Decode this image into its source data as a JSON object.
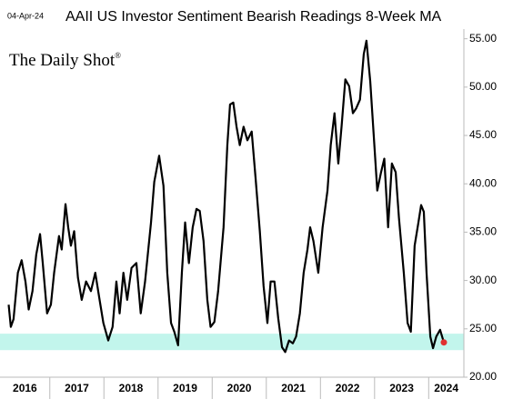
{
  "chart_data": {
    "type": "line",
    "date": "04-Apr-24",
    "title": "AAII US Investor Sentiment Bearish Readings 8-Week MA",
    "source": {
      "name": "The Daily Shot",
      "mark": "®"
    },
    "color": "#000000",
    "last_point_color": "#e03030",
    "band": [
      22.8,
      24.5
    ],
    "band_color": "#c2f5ec",
    "xlim": [
      2016.08,
      2024.65
    ],
    "xticks": [
      2016,
      2017,
      2018,
      2019,
      2020,
      2021,
      2022,
      2023,
      2024
    ],
    "ylim": [
      20,
      56
    ],
    "yticks": [
      {
        "value": 20,
        "label": "20.00"
      },
      {
        "value": 25,
        "label": "25.00"
      },
      {
        "value": 30,
        "label": "30.00"
      },
      {
        "value": 35,
        "label": "35.00"
      },
      {
        "value": 40,
        "label": "40.00"
      },
      {
        "value": 45,
        "label": "45.00"
      },
      {
        "value": 50,
        "label": "50.00"
      },
      {
        "value": 55,
        "label": "55.00"
      }
    ],
    "x": [
      2016.24,
      2016.28,
      2016.33,
      2016.41,
      2016.48,
      2016.55,
      2016.61,
      2016.68,
      2016.75,
      2016.82,
      2016.87,
      2016.95,
      2017.02,
      2017.08,
      2017.17,
      2017.22,
      2017.29,
      2017.34,
      2017.39,
      2017.45,
      2017.52,
      2017.59,
      2017.67,
      2017.76,
      2017.84,
      2017.92,
      2017.99,
      2018.08,
      2018.16,
      2018.23,
      2018.29,
      2018.36,
      2018.43,
      2018.51,
      2018.6,
      2018.68,
      2018.76,
      2018.87,
      2018.93,
      2019.02,
      2019.1,
      2019.17,
      2019.24,
      2019.3,
      2019.37,
      2019.44,
      2019.5,
      2019.57,
      2019.64,
      2019.71,
      2019.77,
      2019.84,
      2019.91,
      2019.97,
      2020.04,
      2020.11,
      2020.21,
      2020.28,
      2020.33,
      2020.39,
      2020.45,
      2020.51,
      2020.58,
      2020.65,
      2020.73,
      2020.8,
      2020.88,
      2020.95,
      2021.02,
      2021.08,
      2021.15,
      2021.22,
      2021.29,
      2021.35,
      2021.42,
      2021.49,
      2021.55,
      2021.62,
      2021.69,
      2021.76,
      2021.81,
      2021.87,
      2021.96,
      2022.04,
      2022.13,
      2022.19,
      2022.26,
      2022.33,
      2022.39,
      2022.46,
      2022.53,
      2022.6,
      2022.66,
      2022.73,
      2022.8,
      2022.85,
      2022.92,
      2022.98,
      2023.05,
      2023.12,
      2023.18,
      2023.25,
      2023.32,
      2023.39,
      2023.45,
      2023.54,
      2023.61,
      2023.67,
      2023.74,
      2023.81,
      2023.86,
      2023.91,
      2023.96,
      2024.03,
      2024.08,
      2024.14,
      2024.21,
      2024.28
    ],
    "values": [
      27.5,
      25.2,
      26,
      30.8,
      32.1,
      29.9,
      27,
      28.9,
      32.7,
      34.8,
      31.8,
      26.6,
      27.5,
      30.8,
      34.6,
      33.2,
      37.9,
      35.5,
      33.6,
      35.1,
      30.3,
      28,
      29.9,
      28.9,
      30.8,
      28,
      25.6,
      23.8,
      25.2,
      29.9,
      26.6,
      30.8,
      28,
      31.3,
      31.8,
      26.6,
      29.9,
      36,
      40.2,
      42.9,
      39.8,
      30.8,
      25.6,
      24.7,
      23.3,
      30.8,
      36,
      31.8,
      35.5,
      37.4,
      37.2,
      34.1,
      28,
      25.2,
      25.7,
      28.9,
      35.5,
      44,
      48.2,
      48.4,
      45.9,
      44,
      45.9,
      44.5,
      45.4,
      40.7,
      35.1,
      29.4,
      25.6,
      29.9,
      29.9,
      26.1,
      23.1,
      22.6,
      23.8,
      23.5,
      24.2,
      26.6,
      30.8,
      33.2,
      35.5,
      34.1,
      30.8,
      35.5,
      39.3,
      44,
      47.3,
      42.1,
      45.9,
      50.8,
      50.1,
      47.3,
      47.8,
      48.7,
      53.4,
      54.8,
      50.6,
      45.4,
      39.3,
      41.2,
      42.6,
      35.5,
      42.1,
      41.2,
      36.5,
      30.8,
      25.6,
      24.7,
      33.6,
      36,
      37.8,
      37.1,
      30.8,
      24.2,
      23,
      24.2,
      24.9,
      23.6
    ]
  }
}
